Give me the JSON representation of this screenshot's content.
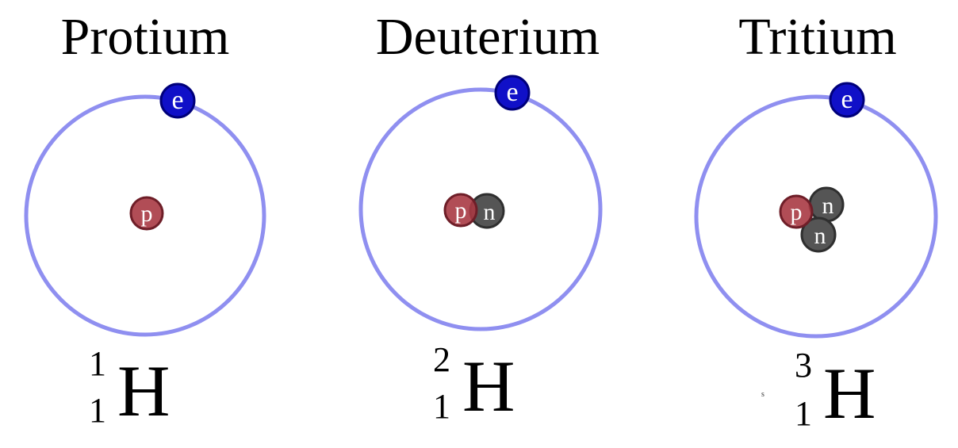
{
  "colors": {
    "orbit": "#8f8ff0",
    "electron_fill": "#1010c8",
    "electron_edge": "#00007a",
    "proton_fill": "#a83a44",
    "proton_edge": "#6e1e28",
    "neutron_fill": "#555555",
    "neutron_edge": "#2f2f2f"
  },
  "isotopes": [
    {
      "name": "Protium",
      "symbol": "H",
      "mass_number": "1",
      "atomic_number": "1",
      "electron_label": "e",
      "nucleus": [
        {
          "type": "proton",
          "label": "p"
        }
      ]
    },
    {
      "name": "Deuterium",
      "symbol": "H",
      "mass_number": "2",
      "atomic_number": "1",
      "electron_label": "e",
      "nucleus": [
        {
          "type": "proton",
          "label": "p"
        },
        {
          "type": "neutron",
          "label": "n"
        }
      ]
    },
    {
      "name": "Tritium",
      "symbol": "H",
      "mass_number": "3",
      "atomic_number": "1",
      "electron_label": "e",
      "nucleus": [
        {
          "type": "proton",
          "label": "p"
        },
        {
          "type": "neutron",
          "label": "n"
        },
        {
          "type": "neutron",
          "label": "n"
        }
      ]
    }
  ],
  "stray_mark": "s"
}
